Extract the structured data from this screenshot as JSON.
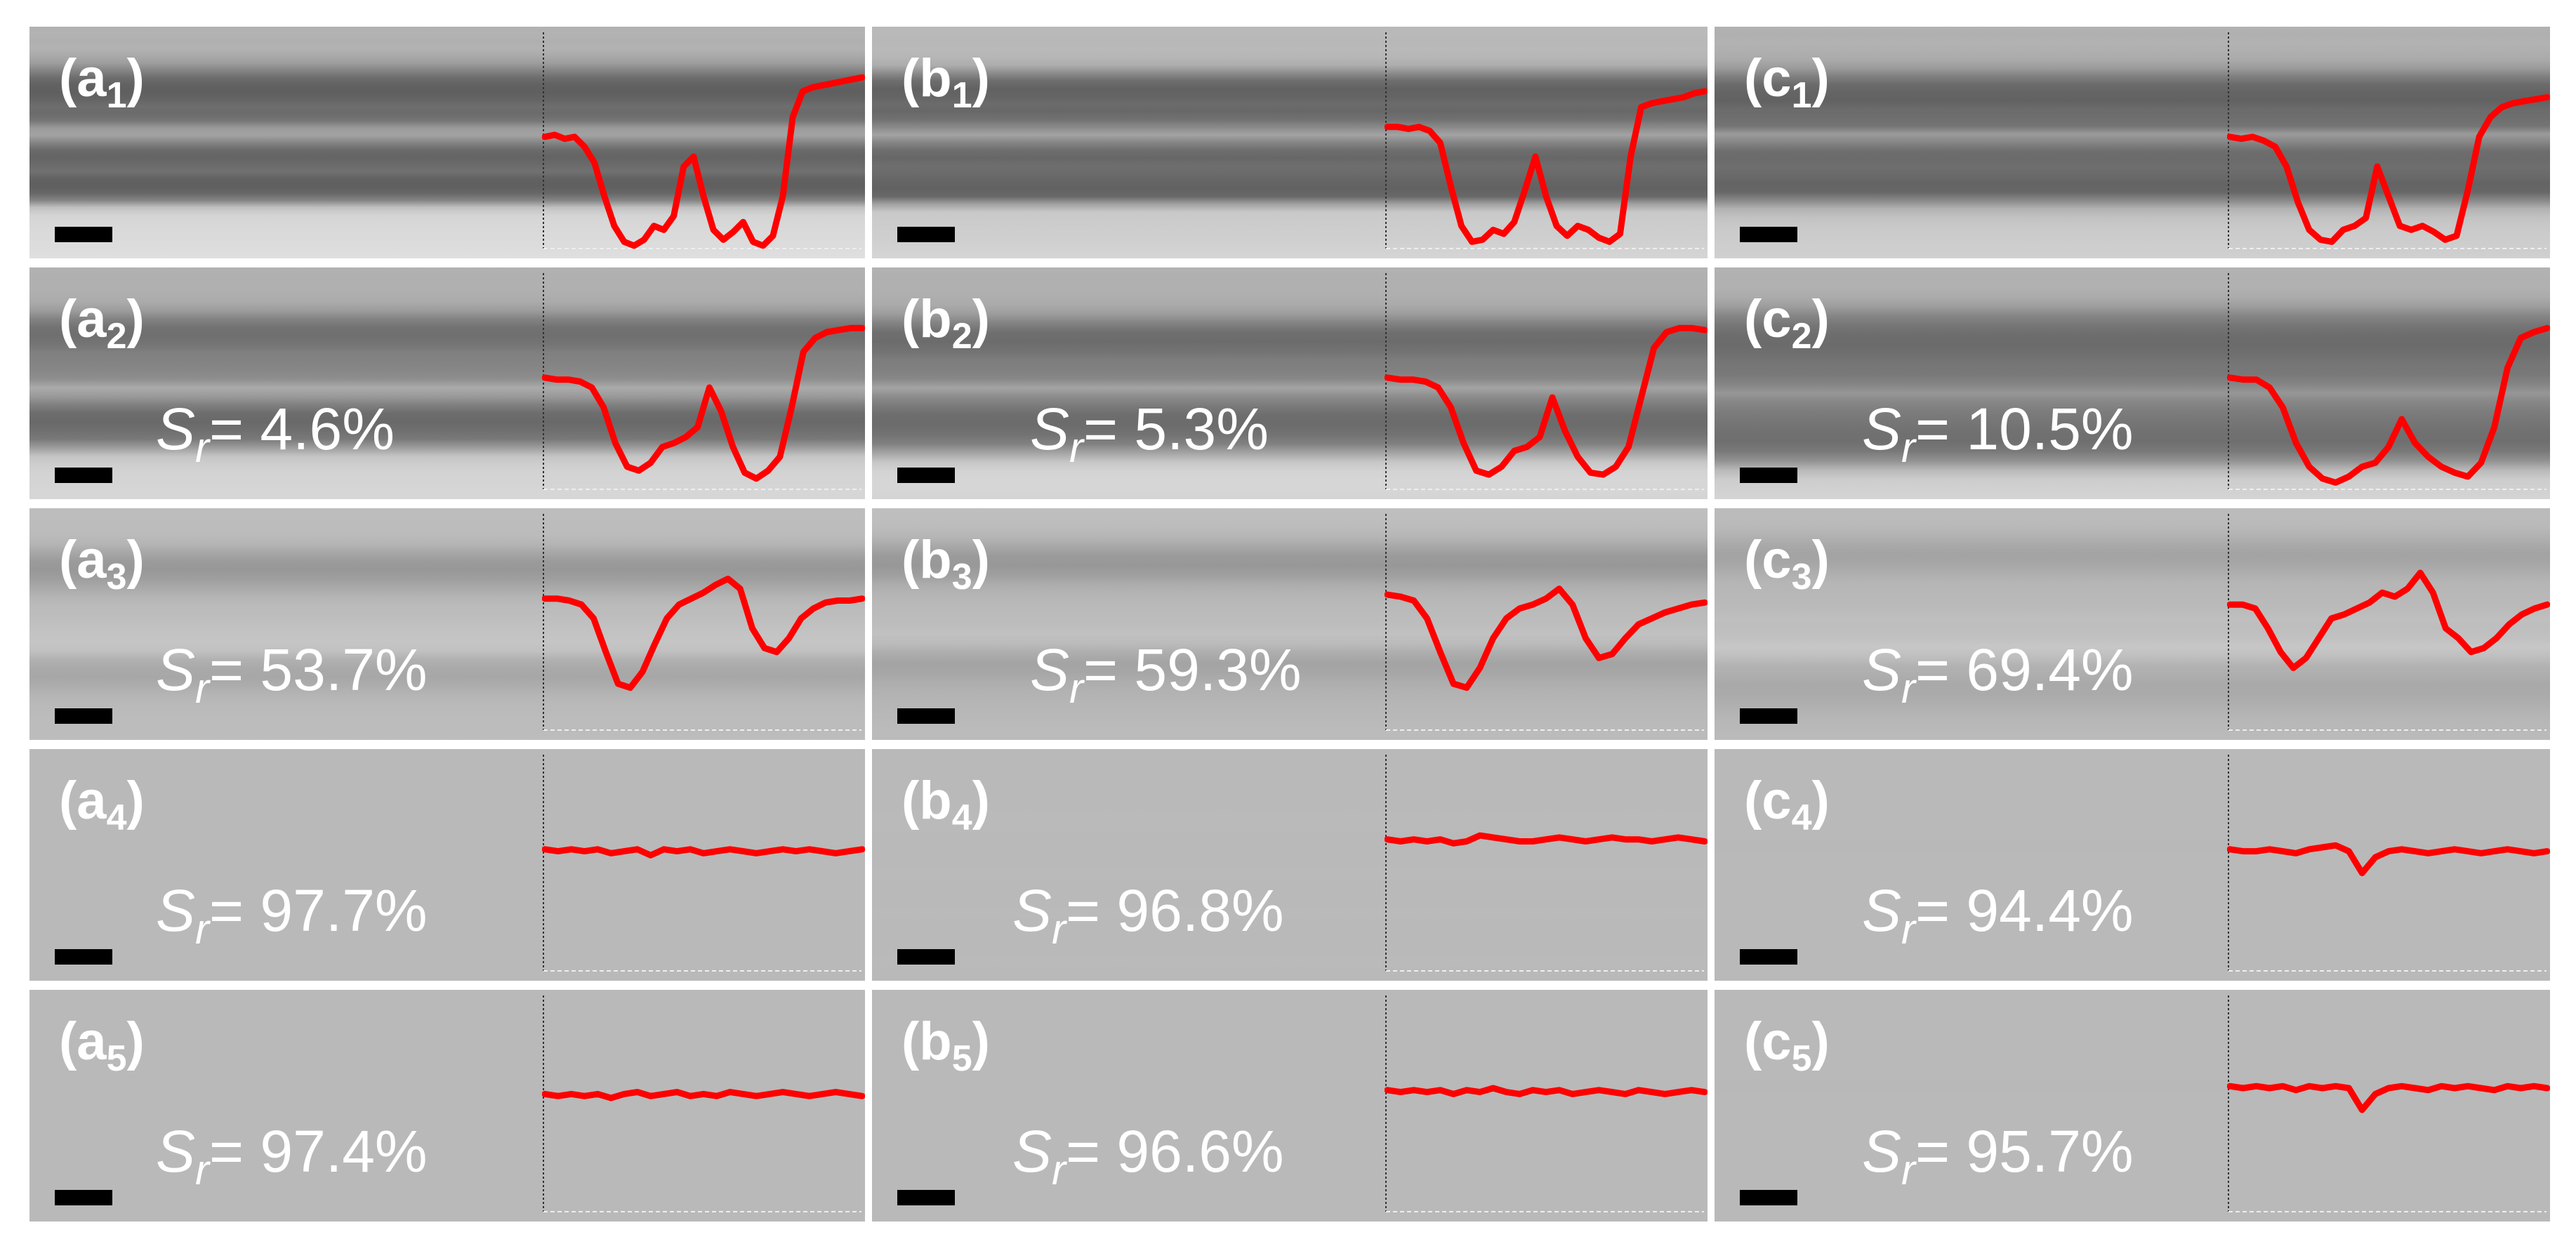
{
  "figure": {
    "colors": {
      "profile_line": "#ff0000",
      "label_text": "#ffffff",
      "scale_bar": "#000000"
    },
    "columns": [
      {
        "id": "a",
        "panels": [
          {
            "label_letter": "(a",
            "label_index": "1",
            "label_close": ")",
            "sr_prefix": "",
            "sr_value": "",
            "profile": [
              0.45,
              0.44,
              0.46,
              0.45,
              0.5,
              0.58,
              0.75,
              0.9,
              0.98,
              1.0,
              0.97,
              0.9,
              0.92,
              0.85,
              0.6,
              0.55,
              0.75,
              0.92,
              0.97,
              0.93,
              0.88,
              0.98,
              1.0,
              0.95,
              0.75,
              0.35,
              0.22,
              0.2,
              0.19,
              0.18,
              0.17,
              0.16,
              0.15
            ],
            "contrast": 1.0
          },
          {
            "label_letter": "(a",
            "label_index": "2",
            "label_close": ")",
            "sr_prefix": "= ",
            "sr_value": "4.6%",
            "profile": [
              0.45,
              0.46,
              0.46,
              0.47,
              0.5,
              0.6,
              0.78,
              0.9,
              0.92,
              0.88,
              0.8,
              0.78,
              0.75,
              0.7,
              0.5,
              0.62,
              0.8,
              0.93,
              0.96,
              0.92,
              0.85,
              0.6,
              0.32,
              0.25,
              0.22,
              0.21,
              0.2,
              0.2
            ],
            "contrast": 0.95
          },
          {
            "label_letter": "(a",
            "label_index": "3",
            "label_close": ")",
            "sr_prefix": "= ",
            "sr_value": "53.7%",
            "profile": [
              0.35,
              0.35,
              0.36,
              0.38,
              0.45,
              0.62,
              0.78,
              0.8,
              0.72,
              0.58,
              0.45,
              0.38,
              0.35,
              0.32,
              0.28,
              0.25,
              0.3,
              0.5,
              0.6,
              0.62,
              0.55,
              0.45,
              0.4,
              0.37,
              0.36,
              0.36,
              0.35
            ],
            "contrast": 0.55
          },
          {
            "label_letter": "(a",
            "label_index": "4",
            "label_close": ")",
            "sr_prefix": "= ",
            "sr_value": "97.7%",
            "profile": [
              0.4,
              0.41,
              0.4,
              0.41,
              0.4,
              0.42,
              0.41,
              0.4,
              0.43,
              0.4,
              0.41,
              0.4,
              0.42,
              0.41,
              0.4,
              0.41,
              0.42,
              0.41,
              0.4,
              0.41,
              0.4,
              0.41,
              0.42,
              0.41,
              0.4
            ],
            "contrast": 0.06
          },
          {
            "label_letter": "(a",
            "label_index": "5",
            "label_close": ")",
            "sr_prefix": "= ",
            "sr_value": "97.4%",
            "profile": [
              0.42,
              0.43,
              0.42,
              0.43,
              0.42,
              0.44,
              0.42,
              0.41,
              0.43,
              0.42,
              0.41,
              0.43,
              0.42,
              0.43,
              0.41,
              0.42,
              0.43,
              0.42,
              0.41,
              0.42,
              0.43,
              0.42,
              0.41,
              0.42,
              0.43
            ],
            "contrast": 0.05
          }
        ]
      },
      {
        "id": "b",
        "panels": [
          {
            "label_letter": "(b",
            "label_index": "1",
            "label_close": ")",
            "sr_prefix": "",
            "sr_value": "",
            "profile": [
              0.4,
              0.4,
              0.41,
              0.4,
              0.42,
              0.48,
              0.7,
              0.9,
              0.98,
              0.97,
              0.92,
              0.94,
              0.88,
              0.72,
              0.55,
              0.75,
              0.9,
              0.95,
              0.9,
              0.92,
              0.96,
              0.98,
              0.94,
              0.55,
              0.3,
              0.28,
              0.27,
              0.26,
              0.25,
              0.23,
              0.22
            ],
            "contrast": 1.0
          },
          {
            "label_letter": "(b",
            "label_index": "2",
            "label_close": ")",
            "sr_prefix": "= ",
            "sr_value": "5.3%",
            "profile": [
              0.45,
              0.46,
              0.46,
              0.47,
              0.5,
              0.6,
              0.78,
              0.92,
              0.94,
              0.9,
              0.82,
              0.8,
              0.75,
              0.55,
              0.72,
              0.85,
              0.93,
              0.94,
              0.9,
              0.8,
              0.55,
              0.3,
              0.22,
              0.2,
              0.2,
              0.21
            ],
            "contrast": 0.95
          },
          {
            "label_letter": "(b",
            "label_index": "3",
            "label_close": ")",
            "sr_prefix": "= ",
            "sr_value": "59.3%",
            "profile": [
              0.33,
              0.34,
              0.36,
              0.45,
              0.62,
              0.78,
              0.8,
              0.7,
              0.55,
              0.45,
              0.4,
              0.38,
              0.35,
              0.3,
              0.38,
              0.55,
              0.65,
              0.63,
              0.55,
              0.48,
              0.45,
              0.42,
              0.4,
              0.38,
              0.37
            ],
            "contrast": 0.55
          },
          {
            "label_letter": "(b",
            "label_index": "4",
            "label_close": ")",
            "sr_prefix": "= ",
            "sr_value": "96.8%",
            "profile": [
              0.35,
              0.36,
              0.35,
              0.36,
              0.35,
              0.37,
              0.36,
              0.33,
              0.34,
              0.35,
              0.36,
              0.36,
              0.35,
              0.34,
              0.35,
              0.36,
              0.35,
              0.34,
              0.35,
              0.35,
              0.36,
              0.35,
              0.34,
              0.35,
              0.36
            ],
            "contrast": 0.06
          },
          {
            "label_letter": "(b",
            "label_index": "5",
            "label_close": ")",
            "sr_prefix": "= ",
            "sr_value": "96.6%",
            "profile": [
              0.4,
              0.41,
              0.4,
              0.41,
              0.4,
              0.42,
              0.4,
              0.41,
              0.39,
              0.41,
              0.42,
              0.4,
              0.41,
              0.4,
              0.42,
              0.41,
              0.4,
              0.41,
              0.42,
              0.4,
              0.41,
              0.42,
              0.41,
              0.4,
              0.41
            ],
            "contrast": 0.05
          }
        ]
      },
      {
        "id": "c",
        "panels": [
          {
            "label_letter": "(c",
            "label_index": "1",
            "label_close": ")",
            "sr_prefix": "",
            "sr_value": "",
            "profile": [
              0.45,
              0.46,
              0.45,
              0.47,
              0.5,
              0.6,
              0.78,
              0.92,
              0.97,
              0.98,
              0.92,
              0.9,
              0.86,
              0.6,
              0.75,
              0.9,
              0.92,
              0.9,
              0.93,
              0.97,
              0.95,
              0.72,
              0.45,
              0.35,
              0.3,
              0.28,
              0.27,
              0.26,
              0.25
            ],
            "contrast": 1.0
          },
          {
            "label_letter": "(c",
            "label_index": "2",
            "label_close": ")",
            "sr_prefix": "= ",
            "sr_value": "10.5%",
            "profile": [
              0.45,
              0.46,
              0.46,
              0.5,
              0.6,
              0.78,
              0.9,
              0.96,
              0.98,
              0.95,
              0.9,
              0.88,
              0.8,
              0.66,
              0.78,
              0.85,
              0.9,
              0.93,
              0.95,
              0.88,
              0.7,
              0.4,
              0.25,
              0.22,
              0.2
            ],
            "contrast": 0.9
          },
          {
            "label_letter": "(c",
            "label_index": "3",
            "label_close": ")",
            "sr_prefix": "= ",
            "sr_value": "69.4%",
            "profile": [
              0.38,
              0.38,
              0.4,
              0.5,
              0.62,
              0.7,
              0.65,
              0.55,
              0.45,
              0.43,
              0.4,
              0.37,
              0.32,
              0.34,
              0.3,
              0.22,
              0.32,
              0.5,
              0.55,
              0.62,
              0.6,
              0.55,
              0.48,
              0.43,
              0.4,
              0.38
            ],
            "contrast": 0.5
          },
          {
            "label_letter": "(c",
            "label_index": "4",
            "label_close": ")",
            "sr_prefix": "= ",
            "sr_value": "94.4%",
            "profile": [
              0.4,
              0.41,
              0.41,
              0.4,
              0.41,
              0.42,
              0.4,
              0.39,
              0.38,
              0.41,
              0.52,
              0.44,
              0.41,
              0.4,
              0.41,
              0.42,
              0.41,
              0.4,
              0.41,
              0.42,
              0.41,
              0.4,
              0.41,
              0.42,
              0.41
            ],
            "contrast": 0.08
          },
          {
            "label_letter": "(c",
            "label_index": "5",
            "label_close": ")",
            "sr_prefix": "= ",
            "sr_value": "95.7%",
            "profile": [
              0.38,
              0.39,
              0.38,
              0.39,
              0.38,
              0.4,
              0.38,
              0.39,
              0.38,
              0.39,
              0.5,
              0.42,
              0.39,
              0.38,
              0.39,
              0.4,
              0.38,
              0.39,
              0.38,
              0.39,
              0.4,
              0.38,
              0.39,
              0.38,
              0.39
            ],
            "contrast": 0.08
          }
        ]
      }
    ]
  }
}
